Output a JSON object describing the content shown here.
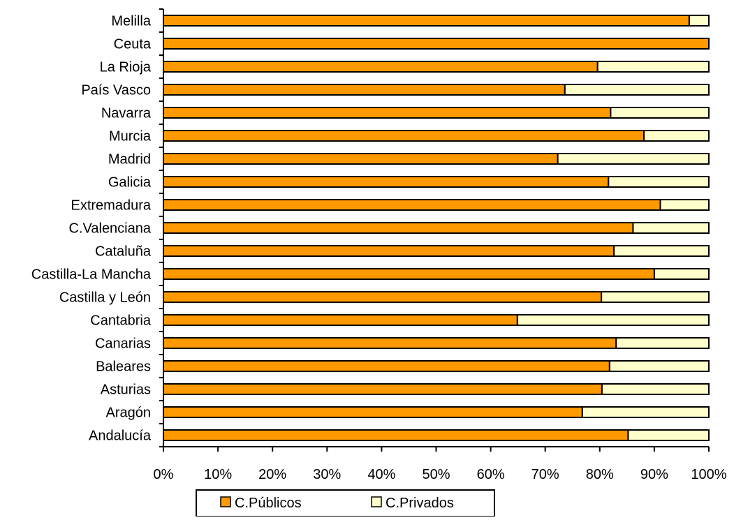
{
  "chart_data": {
    "type": "bar",
    "orientation": "horizontal",
    "stacked": "percent",
    "categories": [
      "Andalucía",
      "Aragón",
      "Asturias",
      "Baleares",
      "Canarias",
      "Cantabria",
      "Castilla y León",
      "Castilla-La Mancha",
      "Cataluña",
      "C.Valenciana",
      "Extremadura",
      "Galicia",
      "Madrid",
      "Murcia",
      "Navarra",
      "País Vasco",
      "La Rioja",
      "Ceuta",
      "Melilla"
    ],
    "series": [
      {
        "name": "C.Públicos",
        "color": "#FF9900",
        "values": [
          85.2,
          76.8,
          80.4,
          81.8,
          83.0,
          64.9,
          80.3,
          90.0,
          82.6,
          86.1,
          91.1,
          81.6,
          72.3,
          88.1,
          82.0,
          73.6,
          79.6,
          100.0,
          96.4
        ]
      },
      {
        "name": "C.Privados",
        "color": "#FFFFCC",
        "values": [
          14.8,
          23.2,
          19.6,
          18.2,
          17.0,
          35.1,
          19.7,
          10.0,
          17.4,
          13.9,
          8.9,
          18.4,
          27.7,
          11.9,
          18.0,
          26.4,
          20.4,
          0.0,
          3.6
        ]
      }
    ],
    "x_ticks": [
      "0%",
      "10%",
      "20%",
      "30%",
      "40%",
      "50%",
      "60%",
      "70%",
      "80%",
      "90%",
      "100%"
    ],
    "xlim": [
      0,
      100
    ],
    "grid": false,
    "legend_position": "bottom",
    "title": "",
    "xlabel": "",
    "ylabel": ""
  }
}
